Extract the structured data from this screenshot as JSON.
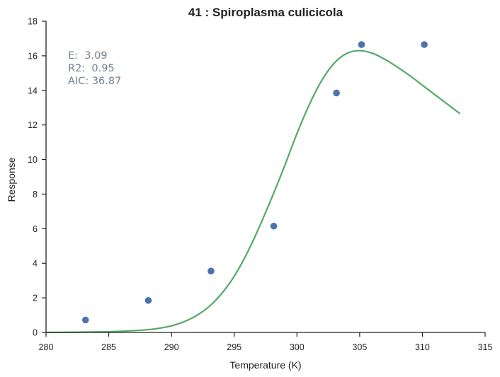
{
  "chart_data": {
    "type": "scatter",
    "title": "41 : Spiroplasma culicicola",
    "xlabel": "Temperature (K)",
    "ylabel": "Response",
    "xlim": [
      280,
      315
    ],
    "ylim": [
      0,
      18
    ],
    "xticks": [
      280,
      285,
      290,
      295,
      300,
      305,
      310,
      315
    ],
    "yticks": [
      0,
      2,
      4,
      6,
      8,
      10,
      12,
      14,
      16,
      18
    ],
    "grid": false,
    "colors": {
      "points": "#4c72b0",
      "curve": "#55a868",
      "annotation": "#708090",
      "axis": "#222222"
    },
    "points": {
      "x": [
        283.15,
        288.15,
        293.15,
        298.15,
        303.15,
        305.15,
        310.15
      ],
      "y": [
        0.72,
        1.85,
        3.55,
        6.15,
        13.85,
        16.65,
        16.65
      ]
    },
    "fit_curve": {
      "x": [
        280.0,
        282.0,
        284.0,
        286.0,
        288.0,
        289.0,
        290.0,
        291.0,
        292.0,
        293.0,
        294.0,
        295.0,
        296.0,
        297.0,
        298.0,
        299.0,
        300.0,
        301.0,
        302.0,
        303.0,
        304.0,
        305.0,
        306.0,
        307.0,
        308.0,
        309.0,
        310.0,
        311.0,
        312.0,
        313.0
      ],
      "y": [
        0.0,
        0.01,
        0.03,
        0.07,
        0.15,
        0.24,
        0.38,
        0.62,
        0.98,
        1.5,
        2.25,
        3.25,
        4.55,
        6.1,
        7.8,
        9.6,
        11.5,
        13.2,
        14.6,
        15.6,
        16.15,
        16.3,
        16.15,
        15.8,
        15.35,
        14.85,
        14.3,
        13.75,
        13.2,
        12.65
      ]
    },
    "annotations": [
      "E:  3.09",
      "R2:  0.95",
      "AIC: 36.87"
    ]
  }
}
